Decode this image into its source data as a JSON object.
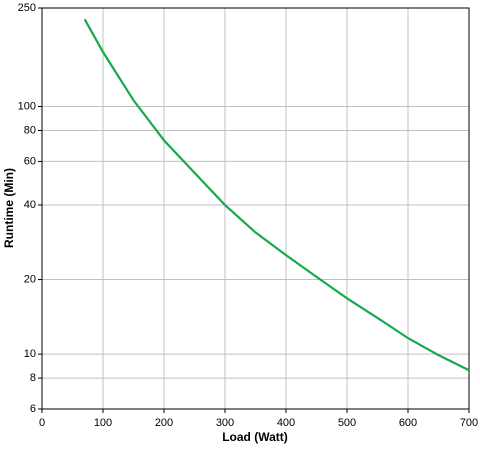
{
  "chart_data": {
    "type": "line",
    "xlabel": "Load (Watt)",
    "ylabel": "Runtime (Min)",
    "x": [
      70,
      100,
      150,
      200,
      250,
      300,
      350,
      400,
      450,
      500,
      550,
      600,
      650,
      700
    ],
    "series": [
      {
        "color": "#1aa84f",
        "values": [
          225,
          166,
          106,
          73,
          54,
          40,
          31,
          25.1,
          20.5,
          16.8,
          14,
          11.6,
          9.9,
          8.6
        ]
      }
    ],
    "xlim": [
      0,
      700
    ],
    "xticks": [
      0,
      100,
      200,
      300,
      400,
      500,
      600,
      700
    ],
    "ylim": [
      6,
      250
    ],
    "yticks": [
      6,
      8,
      10,
      20,
      40,
      60,
      80,
      100,
      250
    ],
    "log_y": true,
    "grid": true
  }
}
